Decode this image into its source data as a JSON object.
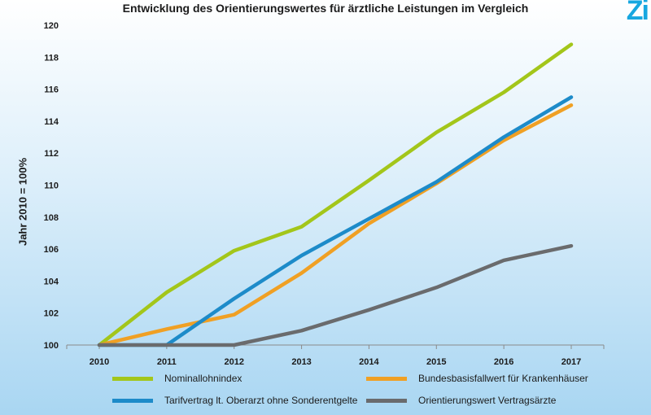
{
  "chart_data": {
    "type": "line",
    "title": "Entwicklung des Orientierungswertes für ärztliche Leistungen im Vergleich",
    "ylabel": "Jahr 2010 = 100%",
    "xlabel": "",
    "x": [
      "2010",
      "2011",
      "2012",
      "2013",
      "2014",
      "2015",
      "2016",
      "2017"
    ],
    "ylim": [
      100,
      120
    ],
    "yticks": [
      100,
      102,
      104,
      106,
      108,
      110,
      112,
      114,
      116,
      118,
      120
    ],
    "grid": false,
    "legend_position": "bottom",
    "series": [
      {
        "name": "Nominallohnindex",
        "color": "#a3c61a",
        "values": [
          100,
          103.3,
          105.9,
          107.4,
          110.3,
          113.3,
          115.8,
          118.8
        ]
      },
      {
        "name": "Bundesbasisfallwert für Krankenhäuser",
        "color": "#f0a024",
        "values": [
          100,
          101.0,
          101.9,
          104.5,
          107.6,
          110.1,
          112.8,
          115.0
        ]
      },
      {
        "name": "Tarifvertrag lt. Oberarzt ohne Sonderentgelte",
        "color": "#1d8bc9",
        "values": [
          100,
          100,
          102.9,
          105.6,
          107.9,
          110.2,
          113.0,
          115.5
        ]
      },
      {
        "name": "Orientierungswert Vertragsärzte",
        "color": "#6a6b6d",
        "values": [
          100,
          100,
          100,
          100.9,
          102.2,
          103.6,
          105.3,
          106.2
        ]
      }
    ]
  },
  "logo_text": "Zi"
}
